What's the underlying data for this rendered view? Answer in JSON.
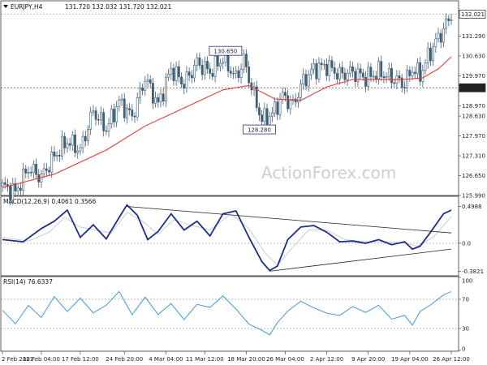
{
  "chart_data": [
    {
      "type": "candlestick",
      "title": "EURJPY,H4",
      "ohlc_text": "131.720 132.032 131.720 132.021",
      "ylim": [
        125.99,
        132.3
      ],
      "y_ticks": [
        {
          "value": 131.29,
          "label": "131.290"
        },
        {
          "value": 130.63,
          "label": "130.630"
        },
        {
          "value": 129.97,
          "label": "129.970"
        },
        {
          "value": 128.97,
          "label": "128.970"
        },
        {
          "value": 128.63,
          "label": "128.630"
        },
        {
          "value": 127.97,
          "label": "127.970"
        },
        {
          "value": 127.31,
          "label": "127.310"
        },
        {
          "value": 126.65,
          "label": "126.650"
        },
        {
          "value": 125.99,
          "label": "125.990"
        }
      ],
      "price_tags": [
        {
          "value": 132.021,
          "label": "132.021",
          "style": "boxed"
        },
        {
          "value": 129.57,
          "label": "129.570",
          "style": "dark"
        }
      ],
      "horizontal_line": 129.57,
      "annotations": [
        {
          "label": "130.650",
          "value": 130.65
        },
        {
          "label": "128.280",
          "value": 128.28
        }
      ],
      "close_path": [
        [
          0,
          126.3
        ],
        [
          5,
          126.1
        ],
        [
          10,
          126.9
        ],
        [
          15,
          126.6
        ],
        [
          20,
          127.3
        ],
        [
          25,
          127.8
        ],
        [
          30,
          127.5
        ],
        [
          35,
          128.8
        ],
        [
          40,
          128.2
        ],
        [
          45,
          129.1
        ],
        [
          50,
          128.6
        ],
        [
          55,
          129.9
        ],
        [
          60,
          129.0
        ],
        [
          65,
          130.2
        ],
        [
          70,
          129.7
        ],
        [
          75,
          130.4
        ],
        [
          80,
          130.1
        ],
        [
          85,
          130.55
        ],
        [
          90,
          129.9
        ],
        [
          93,
          130.5
        ],
        [
          97,
          129.3
        ],
        [
          100,
          128.5
        ],
        [
          104,
          128.7
        ],
        [
          108,
          129.3
        ],
        [
          112,
          129.0
        ],
        [
          116,
          129.8
        ],
        [
          120,
          130.2
        ],
        [
          125,
          130.3
        ],
        [
          130,
          130.0
        ],
        [
          135,
          130.1
        ],
        [
          140,
          129.9
        ],
        [
          145,
          130.1
        ],
        [
          150,
          129.9
        ],
        [
          155,
          129.7
        ],
        [
          158,
          130.2
        ],
        [
          161,
          130.0
        ],
        [
          164,
          130.6
        ],
        [
          167,
          131.1
        ],
        [
          170,
          131.5
        ],
        [
          173,
          132.02
        ]
      ],
      "ma_path": [
        [
          0,
          126.25
        ],
        [
          20,
          126.7
        ],
        [
          40,
          127.5
        ],
        [
          55,
          128.3
        ],
        [
          70,
          128.9
        ],
        [
          85,
          129.5
        ],
        [
          95,
          129.65
        ],
        [
          105,
          129.2
        ],
        [
          115,
          129.15
        ],
        [
          125,
          129.6
        ],
        [
          135,
          129.85
        ],
        [
          145,
          129.85
        ],
        [
          155,
          129.85
        ],
        [
          162,
          129.9
        ],
        [
          168,
          130.2
        ],
        [
          173,
          130.6
        ]
      ]
    },
    {
      "type": "line",
      "title": "MACD(12,26,9) 0.4061 0.3566",
      "ylim": [
        -0.42,
        0.55
      ],
      "y_ticks": [
        {
          "value": 0.4988,
          "label": "0.4988"
        },
        {
          "value": 0.0,
          "label": "0.0"
        },
        {
          "value": -0.3821,
          "label": "-0.3821"
        }
      ],
      "series": [
        {
          "values": [
            [
              0,
              0.05
            ],
            [
              8,
              0.02
            ],
            [
              15,
              0.2
            ],
            [
              20,
              0.3
            ],
            [
              25,
              0.45
            ],
            [
              30,
              0.08
            ],
            [
              35,
              0.25
            ],
            [
              40,
              0.06
            ],
            [
              45,
              0.35
            ],
            [
              48,
              0.52
            ],
            [
              52,
              0.38
            ],
            [
              56,
              0.05
            ],
            [
              60,
              0.16
            ],
            [
              65,
              0.4
            ],
            [
              70,
              0.18
            ],
            [
              75,
              0.3
            ],
            [
              80,
              0.1
            ],
            [
              85,
              0.4
            ],
            [
              90,
              0.44
            ],
            [
              95,
              0.08
            ],
            [
              100,
              -0.25
            ],
            [
              103,
              -0.37
            ],
            [
              106,
              -0.31
            ],
            [
              110,
              0.05
            ],
            [
              115,
              0.22
            ],
            [
              120,
              0.24
            ],
            [
              125,
              0.15
            ],
            [
              130,
              0.02
            ],
            [
              135,
              0.03
            ],
            [
              140,
              0.0
            ],
            [
              145,
              0.05
            ],
            [
              150,
              -0.02
            ],
            [
              155,
              0.02
            ],
            [
              158,
              -0.08
            ],
            [
              161,
              -0.04
            ],
            [
              165,
              0.15
            ],
            [
              170,
              0.4
            ],
            [
              173,
              0.45
            ]
          ]
        },
        {
          "values": [
            [
              0,
              0.08
            ],
            [
              10,
              0.03
            ],
            [
              18,
              0.15
            ],
            [
              24,
              0.35
            ],
            [
              30,
              0.22
            ],
            [
              36,
              0.18
            ],
            [
              42,
              0.14
            ],
            [
              48,
              0.42
            ],
            [
              54,
              0.3
            ],
            [
              60,
              0.12
            ],
            [
              66,
              0.32
            ],
            [
              72,
              0.25
            ],
            [
              80,
              0.18
            ],
            [
              88,
              0.4
            ],
            [
              95,
              0.2
            ],
            [
              101,
              -0.12
            ],
            [
              106,
              -0.3
            ],
            [
              112,
              -0.05
            ],
            [
              118,
              0.18
            ],
            [
              125,
              0.18
            ],
            [
              132,
              0.05
            ],
            [
              140,
              0.02
            ],
            [
              148,
              0.02
            ],
            [
              155,
              0.0
            ],
            [
              160,
              -0.04
            ],
            [
              166,
              0.08
            ],
            [
              173,
              0.36
            ]
          ]
        }
      ],
      "trendlines": [
        {
          "from": [
            48,
            0.5
          ],
          "to": [
            173,
            0.14
          ]
        },
        {
          "from": [
            103,
            -0.38
          ],
          "to": [
            173,
            -0.08
          ]
        }
      ]
    },
    {
      "type": "line",
      "title": "RSI(14) 76.6337",
      "ylim": [
        0,
        100
      ],
      "y_ticks": [
        {
          "value": 100,
          "label": "100"
        },
        {
          "value": 70,
          "label": "70"
        },
        {
          "value": 30,
          "label": "30"
        },
        {
          "value": 0,
          "label": "0"
        }
      ],
      "levels": [
        70,
        30
      ],
      "series": [
        {
          "values": [
            [
              0,
              55
            ],
            [
              5,
              40
            ],
            [
              10,
              65
            ],
            [
              15,
              45
            ],
            [
              20,
              70
            ],
            [
              25,
              50
            ],
            [
              30,
              72
            ],
            [
              35,
              55
            ],
            [
              40,
              65
            ],
            [
              45,
              80
            ],
            [
              50,
              45
            ],
            [
              55,
              70
            ],
            [
              60,
              50
            ],
            [
              65,
              68
            ],
            [
              70,
              45
            ],
            [
              75,
              62
            ],
            [
              80,
              55
            ],
            [
              85,
              72
            ],
            [
              90,
              58
            ],
            [
              95,
              40
            ],
            [
              100,
              30
            ],
            [
              103,
              25
            ],
            [
              106,
              42
            ],
            [
              110,
              50
            ],
            [
              115,
              65
            ],
            [
              120,
              60
            ],
            [
              125,
              55
            ],
            [
              130,
              50
            ],
            [
              135,
              58
            ],
            [
              140,
              48
            ],
            [
              145,
              60
            ],
            [
              150,
              45
            ],
            [
              155,
              52
            ],
            [
              158,
              38
            ],
            [
              161,
              55
            ],
            [
              165,
              60
            ],
            [
              170,
              72
            ],
            [
              173,
              77
            ]
          ]
        }
      ]
    }
  ],
  "x_ticks": [
    {
      "index": 0,
      "label": "2 Feb 2021"
    },
    {
      "index": 15,
      "label": "10 Feb 04:00"
    },
    {
      "index": 30,
      "label": "17 Feb 12:00"
    },
    {
      "index": 47,
      "label": "24 Feb 20:00"
    },
    {
      "index": 63,
      "label": "4 Mar 04:00"
    },
    {
      "index": 78,
      "label": "11 Mar 12:00"
    },
    {
      "index": 94,
      "label": "18 Mar 20:00"
    },
    {
      "index": 109,
      "label": "26 Mar 04:00"
    },
    {
      "index": 125,
      "label": "2 Apr 12:00"
    },
    {
      "index": 141,
      "label": "9 Apr 20:00"
    },
    {
      "index": 157,
      "label": "19 Apr 04:00"
    },
    {
      "index": 173,
      "label": "26 Apr 12:00"
    }
  ],
  "watermark": "ActionForex.com",
  "colors": {
    "candle": "#3f5e76",
    "ma": "#e23b3b",
    "macd": "#1e2f8a",
    "signal": "#c9ccd2",
    "rsi": "#2f8fd8"
  }
}
